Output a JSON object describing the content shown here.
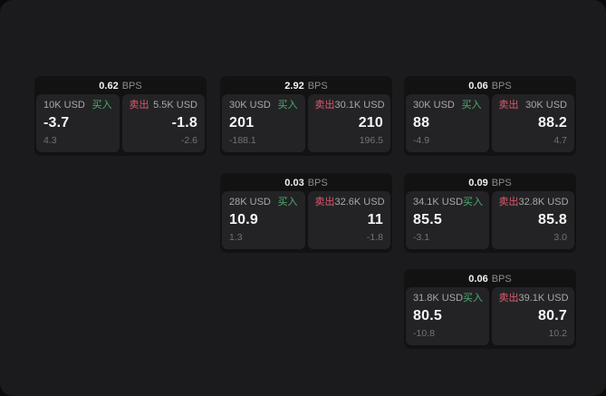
{
  "labels": {
    "bps_unit": "BPS",
    "buy": "买入",
    "sell": "卖出"
  },
  "colors": {
    "buy": "#4caf6e",
    "sell": "#dc5a6d",
    "panel_background": "#1b1b1d",
    "card_background": "#121212",
    "tile_background": "#232325"
  },
  "cards": [
    {
      "bps": "0.62",
      "buy": {
        "size": "10K USD",
        "value": "-3.7",
        "sub": "4.3"
      },
      "sell": {
        "size": "5.5K USD",
        "value": "-1.8",
        "sub": "-2.6"
      }
    },
    {
      "bps": "2.92",
      "buy": {
        "size": "30K USD",
        "value": "201",
        "sub": "-188.1"
      },
      "sell": {
        "size": "30.1K USD",
        "value": "210",
        "sub": "196.5"
      }
    },
    {
      "bps": "0.06",
      "buy": {
        "size": "30K USD",
        "value": "88",
        "sub": "-4.9"
      },
      "sell": {
        "size": "30K USD",
        "value": "88.2",
        "sub": "4.7"
      }
    },
    {
      "bps": "0.03",
      "buy": {
        "size": "28K USD",
        "value": "10.9",
        "sub": "1.3"
      },
      "sell": {
        "size": "32.6K USD",
        "value": "11",
        "sub": "-1.8"
      }
    },
    {
      "bps": "0.09",
      "buy": {
        "size": "34.1K USD",
        "value": "85.5",
        "sub": "-3.1"
      },
      "sell": {
        "size": "32.8K USD",
        "value": "85.8",
        "sub": "3.0"
      }
    },
    {
      "bps": "0.06",
      "buy": {
        "size": "31.8K USD",
        "value": "80.5",
        "sub": "-10.8"
      },
      "sell": {
        "size": "39.1K USD",
        "value": "80.7",
        "sub": "10.2"
      }
    }
  ]
}
